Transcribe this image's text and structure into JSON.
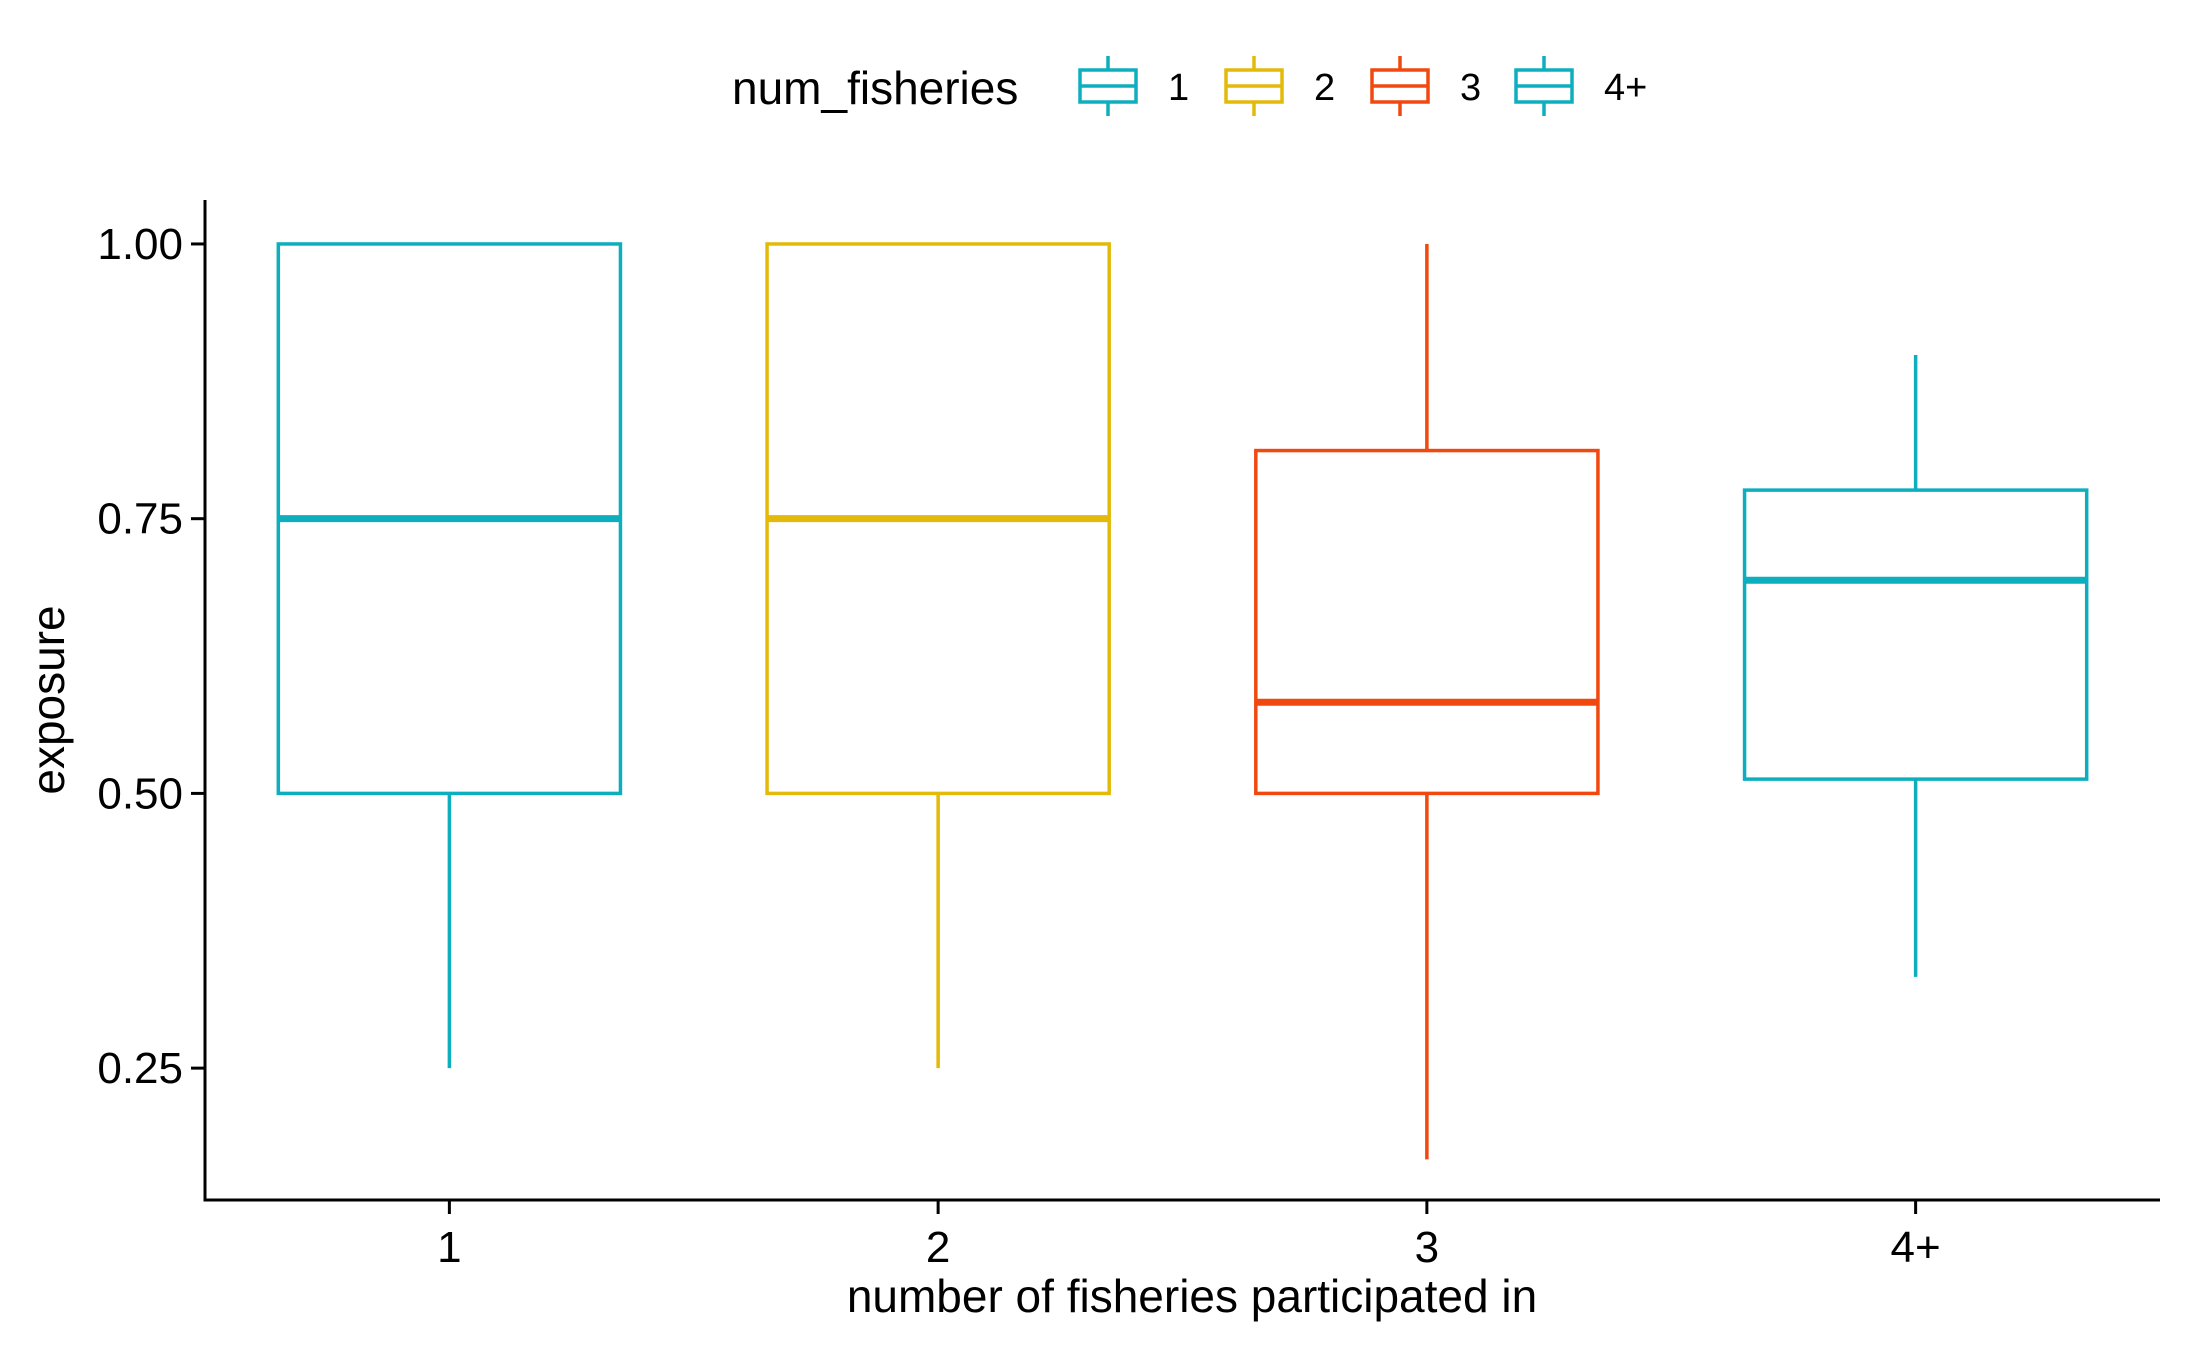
{
  "chart_data": {
    "type": "box",
    "legend": {
      "title": "num_fisheries",
      "placement": "top",
      "entries": [
        "1",
        "2",
        "3",
        "4+"
      ]
    },
    "xlabel": "number of fisheries participated in",
    "ylabel": "exposure",
    "categories": [
      "1",
      "2",
      "3",
      "4+"
    ],
    "ylim": [
      0.13,
      1.04
    ],
    "yticks": [
      0.25,
      0.5,
      0.75,
      1.0
    ],
    "ytick_labels": [
      "0.25",
      "0.50",
      "0.75",
      "1.00"
    ],
    "grid": false,
    "series": [
      {
        "name": "1",
        "color": "#0DAFBF",
        "whisker_low": 0.25,
        "q1": 0.5,
        "median": 0.75,
        "q3": 1.0,
        "whisker_high": 1.0
      },
      {
        "name": "2",
        "color": "#E3BA0A",
        "whisker_low": 0.25,
        "q1": 0.5,
        "median": 0.75,
        "q3": 1.0,
        "whisker_high": 1.0
      },
      {
        "name": "3",
        "color": "#F0480F",
        "whisker_low": 0.167,
        "q1": 0.5,
        "median": 0.583,
        "q3": 0.812,
        "whisker_high": 1.0
      },
      {
        "name": "4+",
        "color": "#0DAFBF",
        "whisker_low": 0.333,
        "q1": 0.513,
        "median": 0.694,
        "q3": 0.776,
        "whisker_high": 0.899
      }
    ]
  }
}
